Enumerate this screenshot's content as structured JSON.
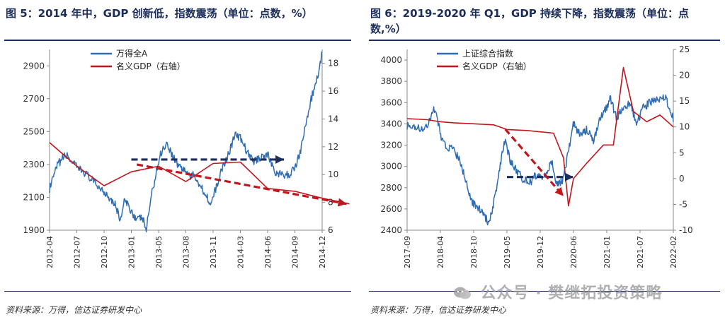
{
  "footer_left": "资料来源：万得，信达证券研发中心",
  "footer_right": "资料来源：万得，信达证券研发中心",
  "watermark": "公众号 · 樊继拓投资策略",
  "colors": {
    "index": "#2e6db4",
    "gdp": "#c0161c",
    "blue_arrow": "#1b2d5a",
    "red_arrow": "#c0161c",
    "title": "#1b2d5a"
  },
  "chart_data": [
    {
      "type": "line",
      "title": "图 5：2014 年中，GDP 创新低，指数震荡（单位：点数，%）",
      "x_ticks": [
        "2012-04",
        "2012-07",
        "2012-10",
        "2013-01",
        "2013-05",
        "2013-08",
        "2013-11",
        "2014-03",
        "2014-06",
        "2014-09",
        "2014-12"
      ],
      "y_left": {
        "range": [
          1900,
          3000
        ],
        "ticks": [
          "1900",
          "2100",
          "2300",
          "2500",
          "2700",
          "2900"
        ]
      },
      "y_right": {
        "range": [
          6,
          19
        ],
        "ticks": [
          "6",
          "8",
          "10",
          "12",
          "14",
          "16",
          "18"
        ]
      },
      "series": [
        {
          "name": "万得全A",
          "axis": "left",
          "anchors": [
            [
              0,
              2150
            ],
            [
              0.3,
              2300
            ],
            [
              0.6,
              2360
            ],
            [
              1.0,
              2280
            ],
            [
              1.3,
              2250
            ],
            [
              1.7,
              2180
            ],
            [
              2.1,
              2120
            ],
            [
              2.4,
              2060
            ],
            [
              2.6,
              1960
            ],
            [
              2.75,
              2080
            ],
            [
              3.0,
              2020
            ],
            [
              3.2,
              1960
            ],
            [
              3.4,
              1980
            ],
            [
              3.55,
              1900
            ],
            [
              3.7,
              2080
            ],
            [
              3.95,
              2280
            ],
            [
              4.1,
              2380
            ],
            [
              4.3,
              2430
            ],
            [
              4.5,
              2360
            ],
            [
              4.7,
              2300
            ],
            [
              5.0,
              2260
            ],
            [
              5.2,
              2220
            ],
            [
              5.3,
              2240
            ],
            [
              5.5,
              2180
            ],
            [
              5.8,
              2100
            ],
            [
              5.9,
              2050
            ],
            [
              6.1,
              2150
            ],
            [
              6.3,
              2260
            ],
            [
              6.6,
              2380
            ],
            [
              6.8,
              2480
            ],
            [
              7.0,
              2460
            ],
            [
              7.3,
              2360
            ],
            [
              7.5,
              2320
            ],
            [
              7.8,
              2350
            ],
            [
              8.0,
              2360
            ],
            [
              8.3,
              2250
            ],
            [
              8.6,
              2230
            ],
            [
              8.8,
              2240
            ],
            [
              9.0,
              2280
            ],
            [
              9.2,
              2380
            ],
            [
              9.45,
              2580
            ],
            [
              9.6,
              2700
            ],
            [
              9.75,
              2780
            ],
            [
              9.9,
              2880
            ],
            [
              10.0,
              2980
            ]
          ]
        },
        {
          "name": "名义GDP（右轴）",
          "axis": "right",
          "points": [
            [
              0,
              12.3
            ],
            [
              1,
              10.6
            ],
            [
              2,
              9.2
            ],
            [
              3,
              10.2
            ],
            [
              4,
              10.6
            ],
            [
              5,
              9.5
            ],
            [
              6,
              10.8
            ],
            [
              7,
              10.9
            ],
            [
              8,
              9.0
            ],
            [
              9,
              8.8
            ],
            [
              10,
              8.3
            ],
            [
              11,
              7.9
            ]
          ]
        }
      ],
      "annotations": [
        {
          "type": "arrow",
          "color": "blue",
          "from": [
            3.0,
            2330
          ],
          "to": [
            8.6,
            2330
          ]
        },
        {
          "type": "arrow",
          "color": "red",
          "from": [
            3.2,
            2300
          ],
          "to": [
            10.9,
            2060
          ]
        }
      ]
    },
    {
      "type": "line",
      "title": "图 6：2019-2020 年 Q1，GDP 持续下降，指数震荡（单位：点数,%）",
      "x_ticks": [
        "2017-09",
        "2018-04",
        "2018-10",
        "2019-05",
        "2019-12",
        "2020-06",
        "2021-01",
        "2021-07",
        "2022-02"
      ],
      "y_left": {
        "range": [
          2400,
          4100
        ],
        "ticks": [
          "2400",
          "2600",
          "2800",
          "3000",
          "3200",
          "3400",
          "3600",
          "3800",
          "4000"
        ]
      },
      "y_right": {
        "range": [
          -10,
          25
        ],
        "ticks": [
          "-10",
          "-5",
          "0",
          "5",
          "10",
          "15",
          "20",
          "25"
        ]
      },
      "series": [
        {
          "name": "上证综合指数",
          "axis": "left",
          "anchors": [
            [
              0,
              3380
            ],
            [
              0.3,
              3350
            ],
            [
              0.6,
              3380
            ],
            [
              0.85,
              3560
            ],
            [
              1.0,
              3300
            ],
            [
              1.2,
              3180
            ],
            [
              1.4,
              3150
            ],
            [
              1.6,
              3050
            ],
            [
              1.75,
              2880
            ],
            [
              1.9,
              2700
            ],
            [
              2.0,
              2650
            ],
            [
              2.15,
              2600
            ],
            [
              2.3,
              2550
            ],
            [
              2.45,
              2470
            ],
            [
              2.6,
              2650
            ],
            [
              2.75,
              2900
            ],
            [
              2.85,
              3100
            ],
            [
              2.95,
              3250
            ],
            [
              3.1,
              3050
            ],
            [
              3.3,
              2950
            ],
            [
              3.5,
              2880
            ],
            [
              3.7,
              2850
            ],
            [
              3.9,
              2930
            ],
            [
              4.1,
              2900
            ],
            [
              4.2,
              2950
            ],
            [
              4.35,
              3050
            ],
            [
              4.5,
              2820
            ],
            [
              4.7,
              2880
            ],
            [
              4.85,
              3150
            ],
            [
              5.0,
              3400
            ],
            [
              5.2,
              3300
            ],
            [
              5.4,
              3350
            ],
            [
              5.6,
              3250
            ],
            [
              5.8,
              3450
            ],
            [
              6.0,
              3550
            ],
            [
              6.1,
              3650
            ],
            [
              6.3,
              3450
            ],
            [
              6.5,
              3550
            ],
            [
              6.7,
              3600
            ],
            [
              6.9,
              3400
            ],
            [
              7.1,
              3550
            ],
            [
              7.3,
              3600
            ],
            [
              7.55,
              3640
            ],
            [
              7.75,
              3650
            ],
            [
              7.9,
              3550
            ],
            [
              8.0,
              3450
            ]
          ]
        },
        {
          "name": "名义GDP（右轴）",
          "axis": "right",
          "points": [
            [
              0,
              11.6
            ],
            [
              0.6,
              11.4
            ],
            [
              1.0,
              11.0
            ],
            [
              1.4,
              10.8
            ],
            [
              2.0,
              10.6
            ],
            [
              2.6,
              10.4
            ],
            [
              3.0,
              9.5
            ],
            [
              3.6,
              9.3
            ],
            [
              4.4,
              8.8
            ],
            [
              4.7,
              4.0
            ],
            [
              4.85,
              -5.3
            ],
            [
              5.0,
              0.0
            ],
            [
              5.4,
              3.0
            ],
            [
              5.9,
              6.5
            ],
            [
              6.2,
              6.5
            ],
            [
              6.5,
              21.5
            ],
            [
              6.8,
              13.0
            ],
            [
              7.2,
              11.0
            ],
            [
              7.6,
              12.3
            ],
            [
              8.0,
              10.0
            ]
          ]
        }
      ],
      "annotations": [
        {
          "type": "arrow",
          "color": "blue",
          "from": [
            3.0,
            2900
          ],
          "to": [
            5.0,
            2900
          ]
        },
        {
          "type": "arrow",
          "color": "red",
          "from": [
            2.95,
            3350
          ],
          "to": [
            4.7,
            2720
          ]
        }
      ]
    }
  ]
}
